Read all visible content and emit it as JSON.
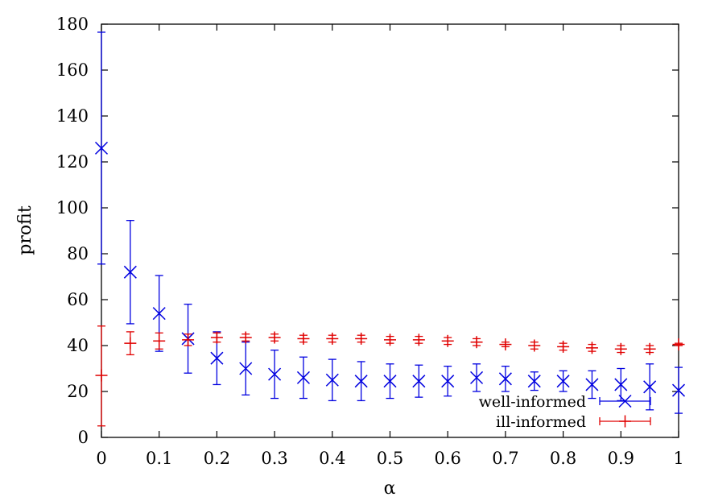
{
  "chart_data": {
    "type": "scatter",
    "xlabel": "α",
    "ylabel": "profit",
    "xlim": [
      0,
      1
    ],
    "ylim": [
      0,
      180
    ],
    "x_ticks": [
      "0",
      "0.1",
      "0.2",
      "0.3",
      "0.4",
      "0.5",
      "0.6",
      "0.7",
      "0.8",
      "0.9",
      "1"
    ],
    "y_ticks": [
      "0",
      "20",
      "40",
      "60",
      "80",
      "100",
      "120",
      "140",
      "160",
      "180"
    ],
    "grid": false,
    "legend_position": "bottom-right",
    "series": [
      {
        "name": "well-informed",
        "color": "#0000e0",
        "marker": "cross-x",
        "points": [
          {
            "x": 0.0,
            "y": 126.0,
            "lo": 75.5,
            "hi": 176.5
          },
          {
            "x": 0.05,
            "y": 72.0,
            "lo": 49.5,
            "hi": 94.5
          },
          {
            "x": 0.1,
            "y": 54.0,
            "lo": 37.5,
            "hi": 70.5
          },
          {
            "x": 0.15,
            "y": 43.0,
            "lo": 28.0,
            "hi": 58.0
          },
          {
            "x": 0.2,
            "y": 34.5,
            "lo": 23.0,
            "hi": 46.0
          },
          {
            "x": 0.25,
            "y": 30.0,
            "lo": 18.5,
            "hi": 41.5
          },
          {
            "x": 0.3,
            "y": 27.5,
            "lo": 17.0,
            "hi": 38.0
          },
          {
            "x": 0.35,
            "y": 26.0,
            "lo": 17.0,
            "hi": 35.0
          },
          {
            "x": 0.4,
            "y": 25.0,
            "lo": 16.0,
            "hi": 34.0
          },
          {
            "x": 0.45,
            "y": 24.5,
            "lo": 16.0,
            "hi": 33.0
          },
          {
            "x": 0.5,
            "y": 24.5,
            "lo": 17.0,
            "hi": 32.0
          },
          {
            "x": 0.55,
            "y": 24.5,
            "lo": 17.5,
            "hi": 31.5
          },
          {
            "x": 0.6,
            "y": 24.5,
            "lo": 18.0,
            "hi": 31.0
          },
          {
            "x": 0.65,
            "y": 26.0,
            "lo": 20.0,
            "hi": 32.0
          },
          {
            "x": 0.7,
            "y": 25.5,
            "lo": 20.0,
            "hi": 31.0
          },
          {
            "x": 0.75,
            "y": 24.5,
            "lo": 20.5,
            "hi": 28.5
          },
          {
            "x": 0.8,
            "y": 24.5,
            "lo": 20.0,
            "hi": 29.0
          },
          {
            "x": 0.85,
            "y": 23.0,
            "lo": 17.0,
            "hi": 29.0
          },
          {
            "x": 0.9,
            "y": 23.0,
            "lo": 16.0,
            "hi": 30.0
          },
          {
            "x": 0.95,
            "y": 22.0,
            "lo": 12.0,
            "hi": 32.0
          },
          {
            "x": 1.0,
            "y": 20.5,
            "lo": 10.5,
            "hi": 30.5
          }
        ]
      },
      {
        "name": "ill-informed",
        "color": "#e00000",
        "marker": "plus",
        "points": [
          {
            "x": 0.0,
            "y": 27.0,
            "lo": 5.0,
            "hi": 48.5
          },
          {
            "x": 0.05,
            "y": 41.0,
            "lo": 36.0,
            "hi": 46.0
          },
          {
            "x": 0.1,
            "y": 42.0,
            "lo": 38.5,
            "hi": 45.5
          },
          {
            "x": 0.15,
            "y": 42.5,
            "lo": 40.0,
            "hi": 45.0
          },
          {
            "x": 0.2,
            "y": 43.5,
            "lo": 41.5,
            "hi": 45.5
          },
          {
            "x": 0.25,
            "y": 43.5,
            "lo": 42.0,
            "hi": 45.0
          },
          {
            "x": 0.3,
            "y": 43.5,
            "lo": 42.0,
            "hi": 45.0
          },
          {
            "x": 0.35,
            "y": 43.0,
            "lo": 41.5,
            "hi": 44.5
          },
          {
            "x": 0.4,
            "y": 43.0,
            "lo": 41.5,
            "hi": 44.5
          },
          {
            "x": 0.45,
            "y": 43.0,
            "lo": 41.5,
            "hi": 44.5
          },
          {
            "x": 0.5,
            "y": 42.5,
            "lo": 41.0,
            "hi": 44.0
          },
          {
            "x": 0.55,
            "y": 42.5,
            "lo": 41.0,
            "hi": 44.0
          },
          {
            "x": 0.6,
            "y": 42.0,
            "lo": 40.5,
            "hi": 43.5
          },
          {
            "x": 0.65,
            "y": 41.5,
            "lo": 40.0,
            "hi": 43.0
          },
          {
            "x": 0.7,
            "y": 40.5,
            "lo": 39.5,
            "hi": 41.5
          },
          {
            "x": 0.75,
            "y": 40.0,
            "lo": 38.5,
            "hi": 41.5
          },
          {
            "x": 0.8,
            "y": 39.5,
            "lo": 38.0,
            "hi": 41.0
          },
          {
            "x": 0.85,
            "y": 39.0,
            "lo": 37.5,
            "hi": 40.5
          },
          {
            "x": 0.9,
            "y": 38.5,
            "lo": 37.0,
            "hi": 40.0
          },
          {
            "x": 0.95,
            "y": 38.5,
            "lo": 37.0,
            "hi": 40.0
          },
          {
            "x": 1.0,
            "y": 40.5,
            "lo": 40.0,
            "hi": 41.0
          }
        ]
      }
    ]
  }
}
